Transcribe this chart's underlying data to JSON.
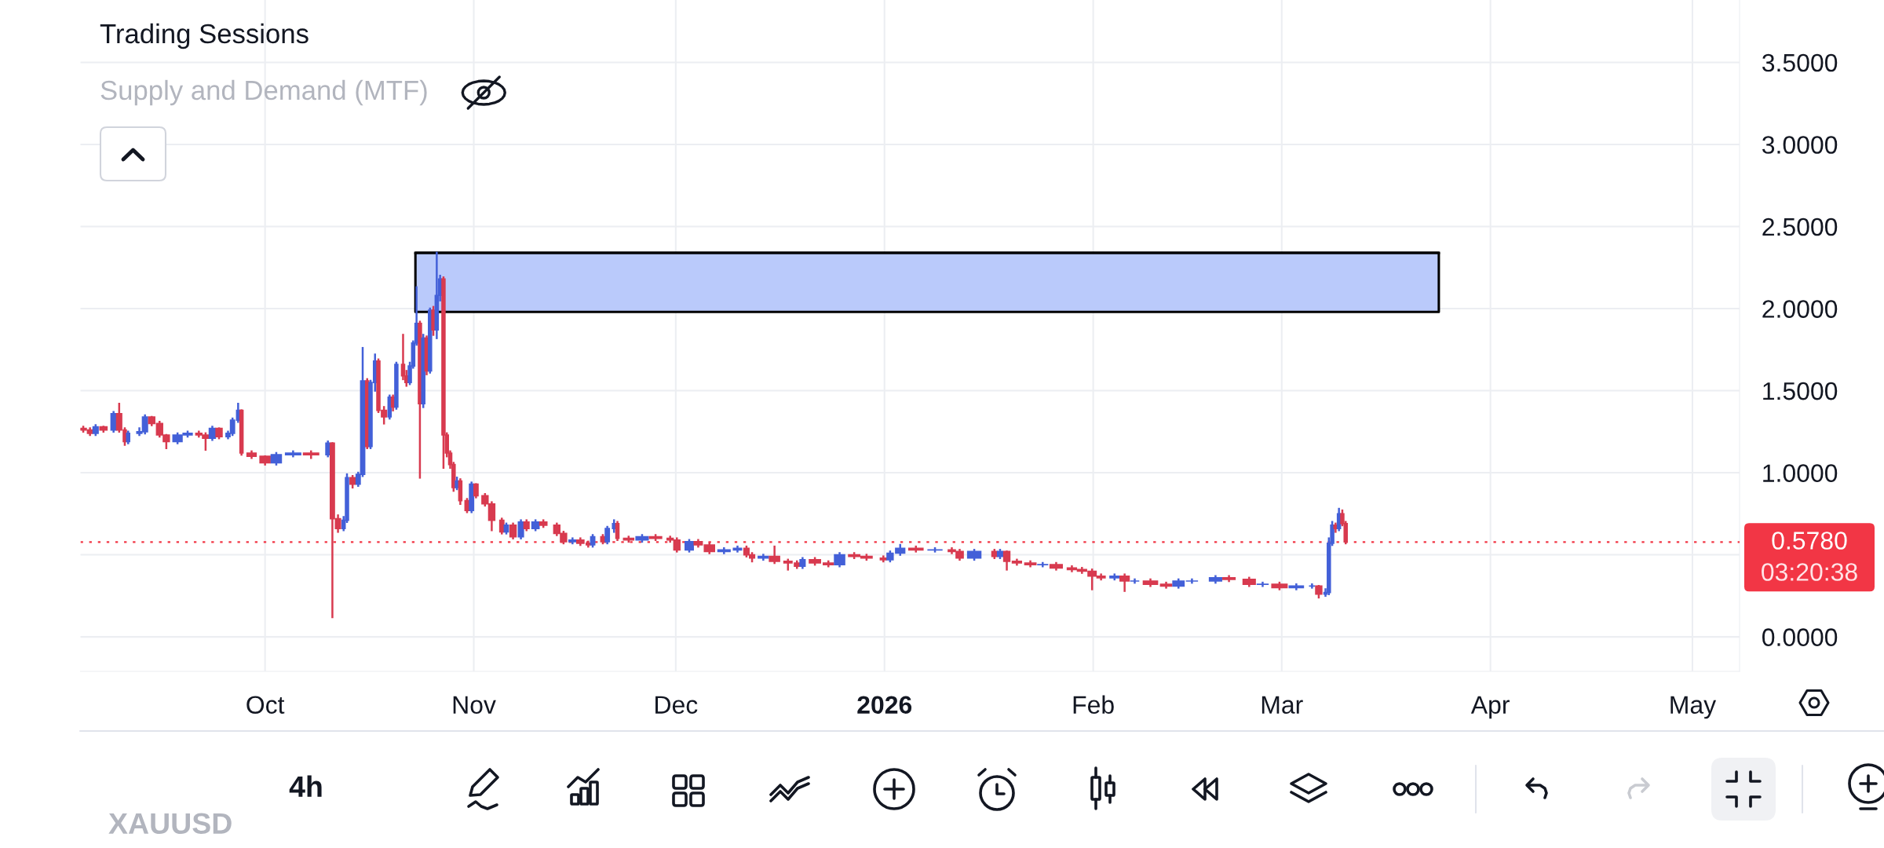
{
  "chart_data": {
    "type": "candlestick",
    "title": "Trading Sessions",
    "subtitle": "Supply and Demand (MTF)",
    "annotations": [
      "03:20:38",
      "4h",
      "XAUUSD"
    ],
    "series": [
      {
        "x": [
          "2025-09-04T00:00",
          "2025-09-05T00:00",
          "2025-09-05T20:00",
          "2025-09-07T00:00",
          "2025-09-08T12:00",
          "2025-09-09T08:00",
          "2025-09-10T04:00",
          "2025-09-10T16:00",
          "2025-09-12T08:00",
          "2025-09-13T04:00",
          "2025-09-14T04:00",
          "2025-09-15T08:00",
          "2025-09-16T08:00",
          "2025-09-18T00:00",
          "2025-09-19T12:00",
          "2025-09-21T04:00",
          "2025-09-22T04:00",
          "2025-09-23T04:00",
          "2025-09-24T04:00",
          "2025-09-25T12:00",
          "2025-09-26T04:00",
          "2025-09-27T00:00",
          "2025-09-27T12:00",
          "2025-09-29T00:00",
          "2025-10-01T00:00",
          "2025-10-02T16:00",
          "2025-10-05T04:00",
          "2025-10-07T20:00",
          "2025-10-10T08:00",
          "2025-10-11T00:00",
          "2025-10-11T20:00",
          "2025-10-12T16:00",
          "2025-10-13T04:00",
          "2025-10-14T00:00",
          "2025-10-14T20:00",
          "2025-10-15T12:00",
          "2025-10-16T04:00",
          "2025-10-16T16:00",
          "2025-10-17T08:00",
          "2025-10-17T20:00",
          "2025-10-18T16:00",
          "2025-10-19T12:00",
          "2025-10-20T00:00",
          "2025-10-20T12:00",
          "2025-10-21T12:00",
          "2025-10-22T00:00",
          "2025-10-22T12:00",
          "2025-10-23T00:00",
          "2025-10-23T12:00",
          "2025-10-24T00:00",
          "2025-10-24T12:00",
          "2025-10-25T00:00",
          "2025-10-25T12:00",
          "2025-10-26T00:00",
          "2025-10-26T12:00",
          "2025-10-27T00:00",
          "2025-10-27T12:00",
          "2025-10-28T00:00",
          "2025-10-28T12:00",
          "2025-10-29T00:00",
          "2025-10-29T12:00",
          "2025-10-30T00:00",
          "2025-10-31T00:00",
          "2025-10-31T16:00",
          "2025-11-01T08:00",
          "2025-11-02T16:00",
          "2025-11-03T16:00",
          "2025-11-05T04:00",
          "2025-11-05T20:00",
          "2025-11-06T20:00",
          "2025-11-08T00:00",
          "2025-11-08T20:00",
          "2025-11-10T04:00",
          "2025-11-11T08:00",
          "2025-11-13T08:00",
          "2025-11-14T08:00",
          "2025-11-15T16:00",
          "2025-11-16T20:00",
          "2025-11-18T00:00",
          "2025-11-18T16:00",
          "2025-11-20T04:00",
          "2025-11-20T20:00",
          "2025-11-21T20:00",
          "2025-11-22T08:00",
          "2025-11-24T00:00",
          "2025-11-26T00:00",
          "2025-11-28T00:00",
          "2025-11-30T04:00",
          "2025-12-01T04:00",
          "2025-12-03T00:00",
          "2025-12-04T08:00",
          "2025-12-06T00:00",
          "2025-12-08T04:00",
          "2025-12-10T04:00",
          "2025-12-11T12:00",
          "2025-12-12T08:00",
          "2025-12-14T00:00",
          "2025-12-15T16:00",
          "2025-12-17T16:00",
          "2025-12-19T00:00",
          "2025-12-19T20:00",
          "2025-12-21T16:00",
          "2025-12-23T16:00",
          "2025-12-25T08:00",
          "2025-12-27T12:00",
          "2025-12-29T08:00",
          "2025-12-31T20:00",
          "2026-01-01T20:00",
          "2026-01-03T08:00",
          "2026-01-05T16:00",
          "2026-01-08T12:00",
          "2026-01-11T00:00",
          "2026-01-12T04:00",
          "2026-01-14T08:00",
          "2026-01-17T08:00",
          "2026-01-18T04:00",
          "2026-01-19T04:00",
          "2026-01-20T16:00",
          "2026-01-22T16:00",
          "2026-01-24T12:00",
          "2026-01-26T12:00",
          "2026-01-28T20:00",
          "2026-01-30T08:00",
          "2026-01-31T20:00",
          "2026-02-02T04:00",
          "2026-02-04T04:00",
          "2026-02-05T16:00",
          "2026-02-07T04:00",
          "2026-02-09T12:00",
          "2026-02-11T20:00",
          "2026-02-13T16:00",
          "2026-02-15T16:00",
          "2026-02-19T04:00",
          "2026-02-21T04:00",
          "2026-02-24T04:00",
          "2026-02-26T04:00",
          "2026-02-28T16:00",
          "2026-03-03T04:00",
          "2026-03-05T12:00",
          "2026-03-06T12:00",
          "2026-03-07T12:00",
          "2026-03-08T00:00",
          "2026-03-08T12:00",
          "2026-03-09T00:00",
          "2026-03-09T12:00",
          "2026-03-10T00:00",
          "2026-03-10T12:00"
        ],
        "ohlc": [
          [
            1.27,
            1.28,
            1.25,
            1.26
          ],
          [
            1.26,
            1.27,
            1.23,
            1.24
          ],
          [
            1.24,
            1.29,
            1.23,
            1.28
          ],
          [
            1.28,
            1.28,
            1.25,
            1.26
          ],
          [
            1.26,
            1.37,
            1.25,
            1.36
          ],
          [
            1.36,
            1.42,
            1.25,
            1.26
          ],
          [
            1.26,
            1.27,
            1.17,
            1.19
          ],
          [
            1.19,
            1.25,
            1.18,
            1.24
          ],
          [
            1.24,
            1.27,
            1.23,
            1.25
          ],
          [
            1.25,
            1.35,
            1.24,
            1.34
          ],
          [
            1.34,
            1.34,
            1.29,
            1.3
          ],
          [
            1.3,
            1.31,
            1.22,
            1.23
          ],
          [
            1.23,
            1.23,
            1.15,
            1.19
          ],
          [
            1.19,
            1.24,
            1.18,
            1.23
          ],
          [
            1.23,
            1.25,
            1.22,
            1.24
          ],
          [
            1.24,
            1.25,
            1.22,
            1.23
          ],
          [
            1.23,
            1.24,
            1.14,
            1.21
          ],
          [
            1.21,
            1.28,
            1.2,
            1.27
          ],
          [
            1.27,
            1.27,
            1.21,
            1.22
          ],
          [
            1.22,
            1.25,
            1.21,
            1.24
          ],
          [
            1.24,
            1.33,
            1.23,
            1.32
          ],
          [
            1.32,
            1.42,
            1.31,
            1.38
          ],
          [
            1.38,
            1.38,
            1.11,
            1.12
          ],
          [
            1.12,
            1.13,
            1.09,
            1.1
          ],
          [
            1.1,
            1.1,
            1.05,
            1.06
          ],
          [
            1.06,
            1.12,
            1.05,
            1.11
          ],
          [
            1.11,
            1.13,
            1.1,
            1.12
          ],
          [
            1.12,
            1.13,
            1.09,
            1.11
          ],
          [
            1.11,
            1.19,
            1.1,
            1.18
          ],
          [
            1.18,
            1.18,
            0.12,
            0.72
          ],
          [
            0.72,
            0.74,
            0.64,
            0.66
          ],
          [
            0.66,
            0.73,
            0.65,
            0.71
          ],
          [
            0.71,
            0.99,
            0.7,
            0.97
          ],
          [
            0.97,
            0.98,
            0.91,
            0.93
          ],
          [
            0.93,
            1.0,
            0.92,
            0.99
          ],
          [
            0.99,
            1.76,
            0.98,
            1.56
          ],
          [
            1.56,
            1.57,
            1.15,
            1.16
          ],
          [
            1.16,
            1.56,
            1.15,
            1.55
          ],
          [
            1.55,
            1.72,
            1.5,
            1.68
          ],
          [
            1.68,
            1.69,
            1.37,
            1.38
          ],
          [
            1.38,
            1.4,
            1.3,
            1.34
          ],
          [
            1.34,
            1.47,
            1.33,
            1.46
          ],
          [
            1.46,
            1.47,
            1.38,
            1.4
          ],
          [
            1.4,
            1.67,
            1.39,
            1.66
          ],
          [
            1.66,
            1.84,
            1.57,
            1.59
          ],
          [
            1.59,
            1.62,
            1.53,
            1.55
          ],
          [
            1.55,
            1.67,
            1.54,
            1.65
          ],
          [
            1.65,
            1.8,
            1.64,
            1.79
          ],
          [
            1.79,
            2.13,
            1.78,
            1.91
          ],
          [
            1.91,
            1.92,
            0.97,
            1.42
          ],
          [
            1.42,
            1.84,
            1.4,
            1.82
          ],
          [
            1.82,
            1.83,
            1.6,
            1.62
          ],
          [
            1.62,
            2.0,
            1.61,
            1.99
          ],
          [
            1.99,
            2.01,
            1.84,
            1.87
          ],
          [
            1.87,
            2.34,
            1.82,
            2.08
          ],
          [
            2.08,
            2.2,
            2.05,
            2.18
          ],
          [
            2.18,
            2.19,
            1.03,
            1.23
          ],
          [
            1.23,
            1.24,
            1.1,
            1.12
          ],
          [
            1.12,
            1.13,
            1.03,
            1.05
          ],
          [
            1.05,
            1.06,
            0.89,
            0.91
          ],
          [
            0.91,
            0.97,
            0.9,
            0.95
          ],
          [
            0.95,
            0.96,
            0.81,
            0.83
          ],
          [
            0.83,
            0.84,
            0.76,
            0.77
          ],
          [
            0.77,
            0.94,
            0.76,
            0.93
          ],
          [
            0.93,
            0.93,
            0.85,
            0.86
          ],
          [
            0.86,
            0.87,
            0.8,
            0.81
          ],
          [
            0.81,
            0.82,
            0.65,
            0.71
          ],
          [
            0.71,
            0.72,
            0.63,
            0.64
          ],
          [
            0.64,
            0.69,
            0.63,
            0.68
          ],
          [
            0.68,
            0.69,
            0.6,
            0.61
          ],
          [
            0.61,
            0.71,
            0.6,
            0.7
          ],
          [
            0.7,
            0.71,
            0.65,
            0.66
          ],
          [
            0.66,
            0.71,
            0.65,
            0.7
          ],
          [
            0.7,
            0.71,
            0.67,
            0.68
          ],
          [
            0.68,
            0.69,
            0.62,
            0.63
          ],
          [
            0.63,
            0.64,
            0.57,
            0.58
          ],
          [
            0.58,
            0.6,
            0.57,
            0.59
          ],
          [
            0.59,
            0.6,
            0.56,
            0.57
          ],
          [
            0.57,
            0.58,
            0.55,
            0.56
          ],
          [
            0.56,
            0.62,
            0.55,
            0.61
          ],
          [
            0.61,
            0.62,
            0.57,
            0.58
          ],
          [
            0.58,
            0.67,
            0.57,
            0.66
          ],
          [
            0.66,
            0.71,
            0.64,
            0.69
          ],
          [
            0.69,
            0.7,
            0.59,
            0.6
          ],
          [
            0.6,
            0.61,
            0.58,
            0.59
          ],
          [
            0.59,
            0.62,
            0.58,
            0.61
          ],
          [
            0.61,
            0.62,
            0.59,
            0.6
          ],
          [
            0.6,
            0.61,
            0.58,
            0.59
          ],
          [
            0.59,
            0.6,
            0.52,
            0.53
          ],
          [
            0.53,
            0.59,
            0.52,
            0.58
          ],
          [
            0.58,
            0.59,
            0.55,
            0.56
          ],
          [
            0.56,
            0.57,
            0.51,
            0.52
          ],
          [
            0.52,
            0.54,
            0.51,
            0.53
          ],
          [
            0.53,
            0.55,
            0.52,
            0.54
          ],
          [
            0.54,
            0.55,
            0.49,
            0.5
          ],
          [
            0.5,
            0.51,
            0.46,
            0.48
          ],
          [
            0.48,
            0.5,
            0.47,
            0.49
          ],
          [
            0.49,
            0.55,
            0.45,
            0.46
          ],
          [
            0.46,
            0.47,
            0.41,
            0.45
          ],
          [
            0.45,
            0.46,
            0.42,
            0.43
          ],
          [
            0.43,
            0.48,
            0.42,
            0.47
          ],
          [
            0.47,
            0.48,
            0.44,
            0.45
          ],
          [
            0.45,
            0.46,
            0.43,
            0.44
          ],
          [
            0.44,
            0.51,
            0.43,
            0.5
          ],
          [
            0.5,
            0.51,
            0.48,
            0.49
          ],
          [
            0.49,
            0.5,
            0.47,
            0.48
          ],
          [
            0.48,
            0.49,
            0.46,
            0.47
          ],
          [
            0.47,
            0.52,
            0.46,
            0.51
          ],
          [
            0.51,
            0.56,
            0.5,
            0.54
          ],
          [
            0.54,
            0.55,
            0.52,
            0.53
          ],
          [
            0.53,
            0.54,
            0.52,
            0.53
          ],
          [
            0.53,
            0.54,
            0.51,
            0.52
          ],
          [
            0.52,
            0.53,
            0.47,
            0.48
          ],
          [
            0.48,
            0.53,
            0.47,
            0.52
          ],
          [
            0.52,
            0.53,
            0.48,
            0.49
          ],
          [
            0.49,
            0.53,
            0.48,
            0.52
          ],
          [
            0.52,
            0.52,
            0.41,
            0.46
          ],
          [
            0.46,
            0.47,
            0.44,
            0.45
          ],
          [
            0.45,
            0.46,
            0.43,
            0.44
          ],
          [
            0.44,
            0.45,
            0.43,
            0.44
          ],
          [
            0.44,
            0.45,
            0.41,
            0.42
          ],
          [
            0.42,
            0.43,
            0.4,
            0.41
          ],
          [
            0.41,
            0.42,
            0.39,
            0.4
          ],
          [
            0.4,
            0.41,
            0.29,
            0.37
          ],
          [
            0.37,
            0.38,
            0.35,
            0.36
          ],
          [
            0.36,
            0.38,
            0.35,
            0.37
          ],
          [
            0.37,
            0.38,
            0.28,
            0.34
          ],
          [
            0.34,
            0.35,
            0.33,
            0.34
          ],
          [
            0.34,
            0.35,
            0.31,
            0.32
          ],
          [
            0.32,
            0.33,
            0.3,
            0.31
          ],
          [
            0.31,
            0.35,
            0.3,
            0.34
          ],
          [
            0.34,
            0.35,
            0.33,
            0.34
          ],
          [
            0.34,
            0.37,
            0.33,
            0.36
          ],
          [
            0.36,
            0.37,
            0.34,
            0.35
          ],
          [
            0.35,
            0.36,
            0.31,
            0.32
          ],
          [
            0.32,
            0.33,
            0.31,
            0.32
          ],
          [
            0.32,
            0.33,
            0.29,
            0.3
          ],
          [
            0.3,
            0.32,
            0.29,
            0.31
          ],
          [
            0.31,
            0.32,
            0.3,
            0.31
          ],
          [
            0.31,
            0.31,
            0.24,
            0.26
          ],
          [
            0.26,
            0.29,
            0.25,
            0.27
          ],
          [
            0.27,
            0.6,
            0.26,
            0.57
          ],
          [
            0.57,
            0.7,
            0.56,
            0.68
          ],
          [
            0.68,
            0.69,
            0.64,
            0.66
          ],
          [
            0.66,
            0.78,
            0.65,
            0.75
          ],
          [
            0.75,
            0.77,
            0.68,
            0.69
          ],
          [
            0.69,
            0.7,
            0.57,
            0.578
          ]
        ],
        "colors": [
          "#d83a4f",
          "#d83a4f",
          "#4360d8",
          "#d83a4f",
          "#4360d8",
          "#d83a4f",
          "#d83a4f",
          "#4360d8",
          "#4360d8",
          "#4360d8",
          "#d83a4f",
          "#d83a4f",
          "#d83a4f",
          "#4360d8",
          "#4360d8",
          "#d83a4f",
          "#d83a4f",
          "#4360d8",
          "#d83a4f",
          "#4360d8",
          "#4360d8",
          "#4360d8",
          "#d83a4f",
          "#d83a4f",
          "#d83a4f",
          "#4360d8",
          "#4360d8",
          "#d83a4f",
          "#4360d8",
          "#d83a4f",
          "#d83a4f",
          "#4360d8",
          "#4360d8",
          "#d83a4f",
          "#4360d8",
          "#4360d8",
          "#d83a4f",
          "#4360d8",
          "#4360d8",
          "#d83a4f",
          "#d83a4f",
          "#4360d8",
          "#d83a4f",
          "#4360d8",
          "#d83a4f",
          "#d83a4f",
          "#4360d8",
          "#4360d8",
          "#4360d8",
          "#d83a4f",
          "#4360d8",
          "#d83a4f",
          "#4360d8",
          "#d83a4f",
          "#4360d8",
          "#4360d8",
          "#d83a4f",
          "#d83a4f",
          "#d83a4f",
          "#d83a4f",
          "#4360d8",
          "#d83a4f",
          "#d83a4f",
          "#4360d8",
          "#d83a4f",
          "#d83a4f",
          "#d83a4f",
          "#d83a4f",
          "#4360d8",
          "#d83a4f",
          "#4360d8",
          "#d83a4f",
          "#4360d8",
          "#d83a4f",
          "#d83a4f",
          "#d83a4f",
          "#4360d8",
          "#d83a4f",
          "#d83a4f",
          "#4360d8",
          "#d83a4f",
          "#4360d8",
          "#4360d8",
          "#d83a4f",
          "#d83a4f",
          "#4360d8",
          "#d83a4f",
          "#d83a4f",
          "#d83a4f",
          "#4360d8",
          "#d83a4f",
          "#d83a4f",
          "#4360d8",
          "#4360d8",
          "#d83a4f",
          "#d83a4f",
          "#4360d8",
          "#d83a4f",
          "#d83a4f",
          "#d83a4f",
          "#4360d8",
          "#d83a4f",
          "#d83a4f",
          "#4360d8",
          "#d83a4f",
          "#d83a4f",
          "#d83a4f",
          "#4360d8",
          "#4360d8",
          "#d83a4f",
          "#4360d8",
          "#d83a4f",
          "#d83a4f",
          "#4360d8",
          "#d83a4f",
          "#4360d8",
          "#d83a4f",
          "#d83a4f",
          "#d83a4f",
          "#4360d8",
          "#d83a4f",
          "#d83a4f",
          "#d83a4f",
          "#d83a4f",
          "#d83a4f",
          "#4360d8",
          "#d83a4f",
          "#4360d8",
          "#d83a4f",
          "#d83a4f",
          "#4360d8",
          "#4360d8",
          "#4360d8",
          "#d83a4f",
          "#d83a4f",
          "#4360d8",
          "#d83a4f",
          "#4360d8",
          "#4360d8",
          "#d83a4f",
          "#4360d8",
          "#4360d8",
          "#4360d8",
          "#d83a4f",
          "#4360d8",
          "#d83a4f",
          "#d83a4f"
        ]
      },
      {
        "type": "line",
        "x": [
          "2025-10-23T08:00",
          "2026-03-24T08:00"
        ],
        "values": [
          2.34,
          2.34
        ],
        "lower": [
          1.98,
          1.98
        ],
        "upper": [
          2.34,
          2.34
        ],
        "color": "#000000"
      }
    ],
    "xlim": [
      "2025-09-03T14:00",
      "2026-05-08T00:00"
    ],
    "xticks": [
      {
        "value": "2025-10-01",
        "label": "Oct"
      },
      {
        "value": "2025-11-01",
        "label": "Nov"
      },
      {
        "value": "2025-12-01",
        "label": "Dec"
      },
      {
        "value": "2026-01-01",
        "label": "2026"
      },
      {
        "value": "2026-02-01",
        "label": "Feb"
      },
      {
        "value": "2026-03-01",
        "label": "Mar"
      },
      {
        "value": "2026-04-01",
        "label": "Apr"
      },
      {
        "value": "2026-05-01",
        "label": "May"
      }
    ],
    "ylim": [
      -0.21,
      3.88
    ],
    "yticks": [
      {
        "value": 0,
        "label": "0.0000"
      },
      {
        "value": 0.5,
        "label": null
      },
      {
        "value": 1,
        "label": "1.0000"
      },
      {
        "value": 1.5,
        "label": "1.5000"
      },
      {
        "value": 2,
        "label": "2.0000"
      },
      {
        "value": 2.5,
        "label": "2.5000"
      },
      {
        "value": 3,
        "label": "3.0000"
      },
      {
        "value": 3.5,
        "label": "3.5000"
      }
    ],
    "ref_lines": [
      {
        "axis": "y",
        "value": 0.578,
        "label": "0.5780",
        "color": "#f23645",
        "line_style": "dotted"
      }
    ],
    "grid": true
  }
}
